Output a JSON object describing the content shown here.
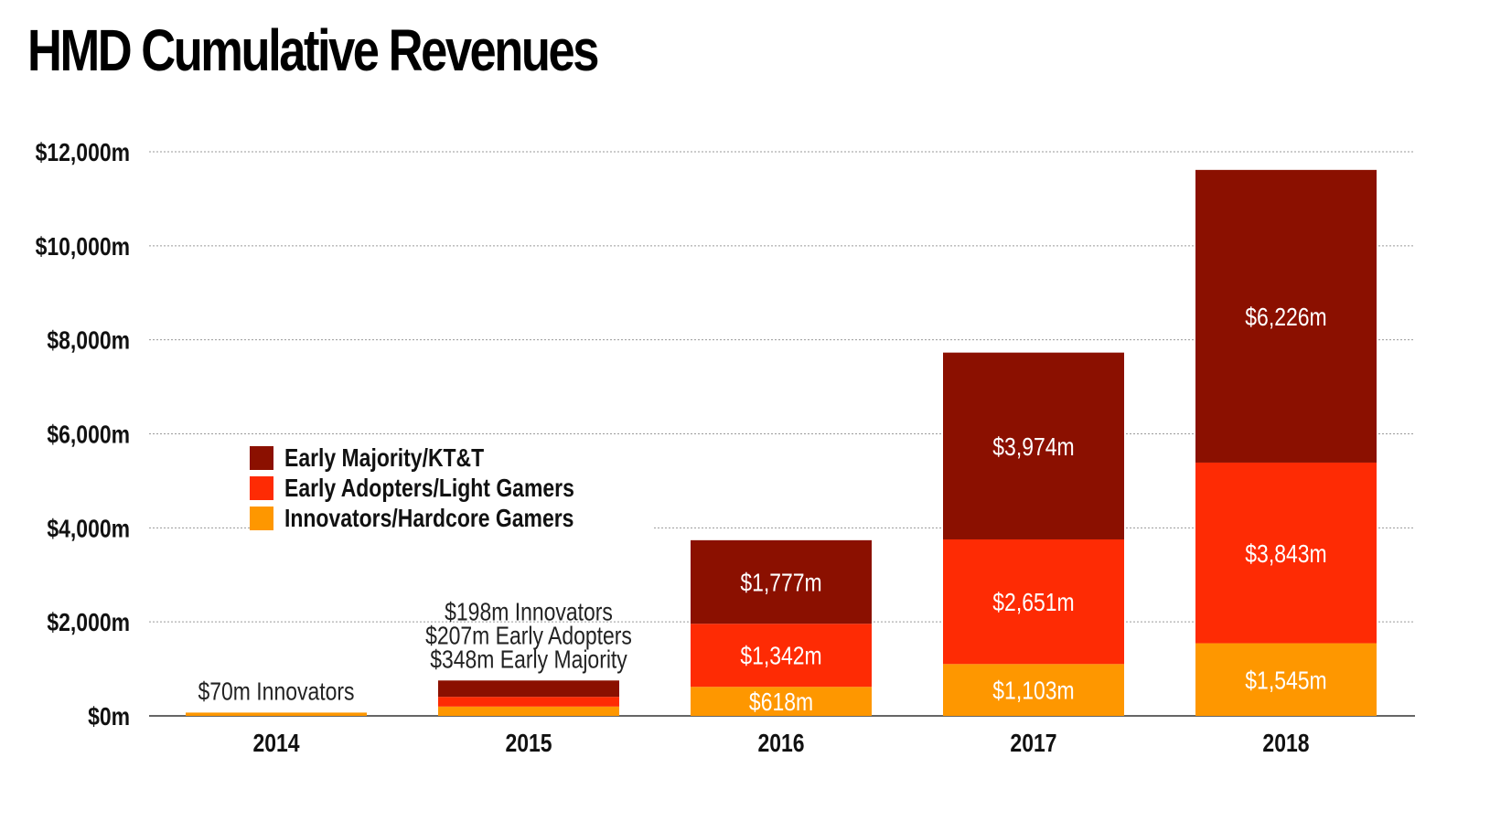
{
  "chart_data": {
    "type": "bar",
    "stacked": true,
    "title": "HMD Cumulative Revenues",
    "xlabel": "",
    "ylabel": "",
    "categories": [
      "2014",
      "2015",
      "2016",
      "2017",
      "2018"
    ],
    "ylim": [
      0,
      12000
    ],
    "yticks": [
      0,
      2000,
      4000,
      6000,
      8000,
      10000,
      12000
    ],
    "ytick_labels": [
      "$0m",
      "$2,000m",
      "$4,000m",
      "$6,000m",
      "$8,000m",
      "$10,000m",
      "$12,000m"
    ],
    "grid": "horizontal dotted",
    "legend_position": "center-left",
    "series": [
      {
        "name": "Innovators/Hardcore Gamers",
        "color": "#fe9700",
        "values": [
          70,
          198,
          618,
          1103,
          1545
        ],
        "labels": [
          "",
          "",
          "$618m",
          "$1,103m",
          "$1,545m"
        ]
      },
      {
        "name": "Early Adopters/Light Gamers",
        "color": "#fe2b04",
        "values": [
          0,
          207,
          1342,
          2651,
          3843
        ],
        "labels": [
          "",
          "",
          "$1,342m",
          "$2,651m",
          "$3,843m"
        ]
      },
      {
        "name": "Early Majority/KT&T",
        "color": "#8b1000",
        "values": [
          0,
          348,
          1777,
          3974,
          6226
        ],
        "labels": [
          "",
          "",
          "$1,777m",
          "$3,974m",
          "$6,226m"
        ]
      }
    ],
    "legend_order": [
      2,
      1,
      0
    ],
    "annotations": [
      {
        "category": "2014",
        "lines": [
          "$70m Innovators"
        ]
      },
      {
        "category": "2015",
        "lines": [
          "$198m Innovators",
          "$207m Early Adopters",
          "$348m Early Majority"
        ]
      }
    ]
  }
}
